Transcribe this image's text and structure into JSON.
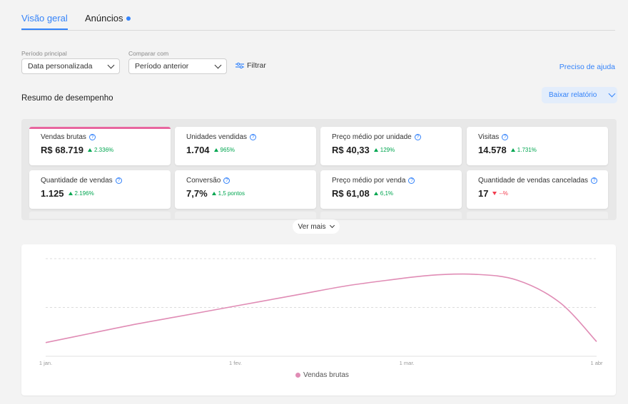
{
  "tabs": [
    {
      "label": "Visão geral",
      "active": true
    },
    {
      "label": "Anúncios",
      "active": false,
      "has_dot": true
    }
  ],
  "filters": {
    "period_label": "Período principal",
    "period_value": "Data personalizada",
    "compare_label": "Comparar com",
    "compare_value": "Período anterior",
    "filter_label": "Filtrar",
    "help_link": "Preciso de ajuda"
  },
  "summary": {
    "title": "Resumo de desempenho",
    "download_label": "Baixar relatório"
  },
  "metrics": [
    {
      "label": "Vendas brutas",
      "value": "R$ 68.719",
      "delta": "2.336%",
      "trend": "up",
      "active": true
    },
    {
      "label": "Unidades vendidas",
      "value": "1.704",
      "delta": "965%",
      "trend": "up"
    },
    {
      "label": "Preço médio por unidade",
      "value": "R$ 40,33",
      "delta": "129%",
      "trend": "up"
    },
    {
      "label": "Visitas",
      "value": "14.578",
      "delta": "1.731%",
      "trend": "up"
    },
    {
      "label": "Quantidade de vendas",
      "value": "1.125",
      "delta": "2.196%",
      "trend": "up"
    },
    {
      "label": "Conversão",
      "value": "7,7%",
      "delta": "1,5 pontos",
      "trend": "up"
    },
    {
      "label": "Preço médio por venda",
      "value": "R$ 61,08",
      "delta": "6,1%",
      "trend": "up"
    },
    {
      "label": "Quantidade de vendas canceladas",
      "value": "17",
      "delta": "--%",
      "trend": "down"
    }
  ],
  "more_label": "Ver mais",
  "colors": {
    "accent": "#3483fa",
    "series": "#e08cb5",
    "up": "#00a650",
    "down": "#f23d4f"
  },
  "chart_data": {
    "type": "line",
    "title": "",
    "xlabel": "",
    "ylabel": "",
    "x_ticks": [
      "1 jan.",
      "1 fev.",
      "1 mar.",
      "1 abr"
    ],
    "grid": true,
    "legend": "bottom-center",
    "series": [
      {
        "name": "Vendas brutas",
        "x": [
          0,
          7,
          14,
          21,
          28,
          35,
          42,
          49,
          56,
          63,
          70,
          77,
          84,
          90
        ],
        "y": [
          0.14,
          0.23,
          0.32,
          0.4,
          0.48,
          0.56,
          0.64,
          0.72,
          0.78,
          0.83,
          0.84,
          0.78,
          0.55,
          0.15
        ]
      }
    ]
  }
}
